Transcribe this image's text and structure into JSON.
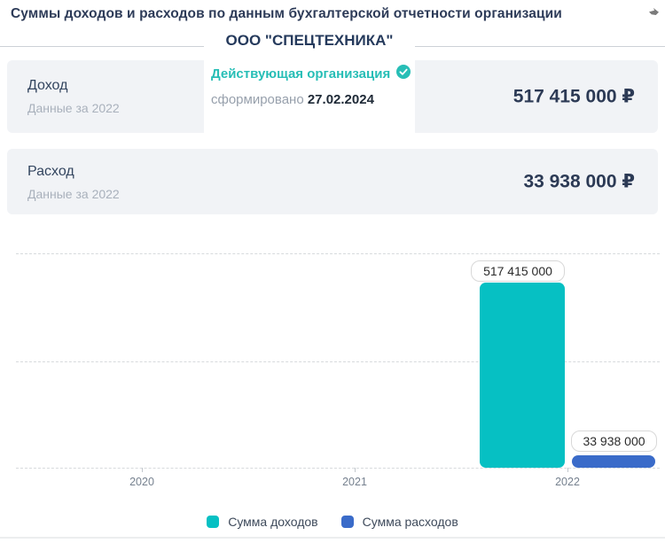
{
  "header": {
    "title": "Суммы доходов и расходов по данным бухгалтерской отчетности организации",
    "company_name": "ООО \"СПЕЦТЕХНИКА\"",
    "status": "Действующая организация",
    "formed_label": "сформировано",
    "formed_date": "27.02.2024"
  },
  "cards": {
    "income": {
      "label": "Доход",
      "sublabel": "Данные за 2022",
      "value": "517 415 000 ₽"
    },
    "expense": {
      "label": "Расход",
      "sublabel": "Данные за 2022",
      "value": "33 938 000 ₽"
    }
  },
  "chart_data": {
    "type": "bar",
    "categories": [
      "2020",
      "2021",
      "2022"
    ],
    "series": [
      {
        "name": "Сумма доходов",
        "color": "#06c0c3",
        "values": [
          null,
          null,
          517415000
        ],
        "point_label": "517 415 000"
      },
      {
        "name": "Сумма расходов",
        "color": "#3a6bc9",
        "values": [
          null,
          null,
          33938000
        ],
        "point_label": "33 938 000"
      }
    ],
    "ylim": [
      0,
      650000000
    ],
    "gridline_values": [
      0,
      300000000,
      600000000
    ],
    "grid": "dashed-horizontal",
    "legend_position": "bottom",
    "xlabel": "",
    "ylabel": ""
  },
  "colors": {
    "accent_teal": "#06c0c3",
    "accent_blue": "#3a6bc9",
    "status_teal": "#27beb6",
    "dark_text": "#2c3a55",
    "muted_text": "#a9b1bc",
    "card_bg": "#f1f3f6"
  }
}
